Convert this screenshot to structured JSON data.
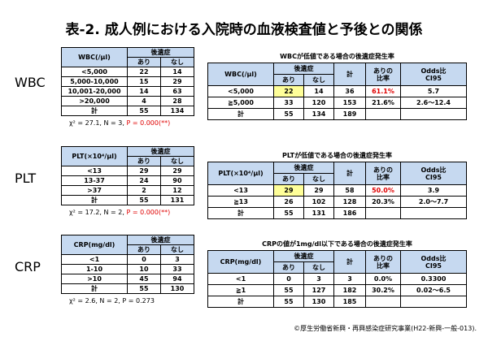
{
  "title": "表-2. 成人例における入院時の血液検査値と予後との関係",
  "sections": [
    {
      "label": "WBC",
      "summary_table": {
        "header": {
          "variable": "WBC(/μl)",
          "group": "後遺症",
          "sub": [
            "あり",
            "なし"
          ]
        },
        "rows": [
          [
            "<5,000",
            "22",
            "14"
          ],
          [
            "5,000-10,000",
            "15",
            "29"
          ],
          [
            "10,001-20,000",
            "14",
            "63"
          ],
          [
            ">20,000",
            "4",
            "28"
          ],
          [
            "計",
            "55",
            "134"
          ]
        ]
      },
      "stat": "χ² = 27.1, N = 3,",
      "p_value": "P = 0.000(**)",
      "p_color": "#e00000",
      "risk_table": {
        "caption": "WBCが低値である場合の後遺症発生率",
        "header": {
          "variable": "WBC(/μl)",
          "group": "後遺症",
          "sub": [
            "あり",
            "なし"
          ],
          "total": "計",
          "ratio": "ありの\n比率",
          "odds": "Odds比\nCI95"
        },
        "rows": [
          [
            "<5,000",
            "22",
            "14",
            "36",
            "61.1%",
            "5.7"
          ],
          [
            "≧5,000",
            "33",
            "120",
            "153",
            "21.6%",
            "2.6～12.4"
          ],
          [
            "計",
            "55",
            "134",
            "189"
          ]
        ]
      }
    },
    {
      "label": "PLT",
      "summary_table": {
        "header": {
          "variable": "PLT(×10⁴/μl)",
          "group": "後遺症",
          "sub": [
            "あり",
            "なし"
          ]
        },
        "rows": [
          [
            "<13",
            "29",
            "29"
          ],
          [
            "13-37",
            "24",
            "90"
          ],
          [
            ">37",
            "2",
            "12"
          ],
          [
            "計",
            "55",
            "131"
          ]
        ]
      },
      "stat": "χ² = 17.2, N = 2,",
      "p_value": "P = 0.000(**)",
      "p_color": "#e00000",
      "risk_table": {
        "caption": "PLTが低値である場合の後遺症発生率",
        "header": {
          "variable": "PLT(×10⁴/μl)",
          "group": "後遺症",
          "sub": [
            "あり",
            "なし"
          ],
          "total": "計",
          "ratio": "ありの\n比率",
          "odds": "Odds比\nCI95"
        },
        "rows": [
          [
            "<13",
            "29",
            "29",
            "58",
            "50.0%",
            "3.9"
          ],
          [
            "≧13",
            "26",
            "102",
            "128",
            "20.3%",
            "2.0～7.7"
          ],
          [
            "計",
            "55",
            "131",
            "186"
          ]
        ]
      }
    },
    {
      "label": "CRP",
      "summary_table": {
        "header": {
          "variable": "CRP(mg/dl)",
          "group": "後遺症",
          "sub": [
            "あり",
            "なし"
          ]
        },
        "rows": [
          [
            "<1",
            "0",
            "3"
          ],
          [
            "1-10",
            "10",
            "33"
          ],
          [
            ">10",
            "45",
            "94"
          ],
          [
            "計",
            "55",
            "130"
          ]
        ]
      },
      "stat": "χ² = 2.6, N = 2,",
      "p_value": "P = 0.273",
      "p_color": "#000000",
      "risk_table": {
        "caption": "CRPの値が1mg/dl以下である場合の後遺症発生率",
        "header": {
          "variable": "CRP(mg/dl)",
          "group": "後遺症",
          "sub": [
            "あり",
            "なし"
          ],
          "total": "計",
          "ratio": "ありの\n比率",
          "odds": "Odds比\nCI95"
        },
        "rows": [
          [
            "<1",
            "0",
            "3",
            "3",
            "0.0%",
            "0.3300"
          ],
          [
            "≧1",
            "55",
            "127",
            "182",
            "30.2%",
            "0.02～6.5"
          ],
          [
            "計",
            "55",
            "130",
            "185"
          ]
        ]
      }
    }
  ],
  "footer": "©厚生労働省新興・再興感染症研究事業(H22-新興-一般-013)."
}
